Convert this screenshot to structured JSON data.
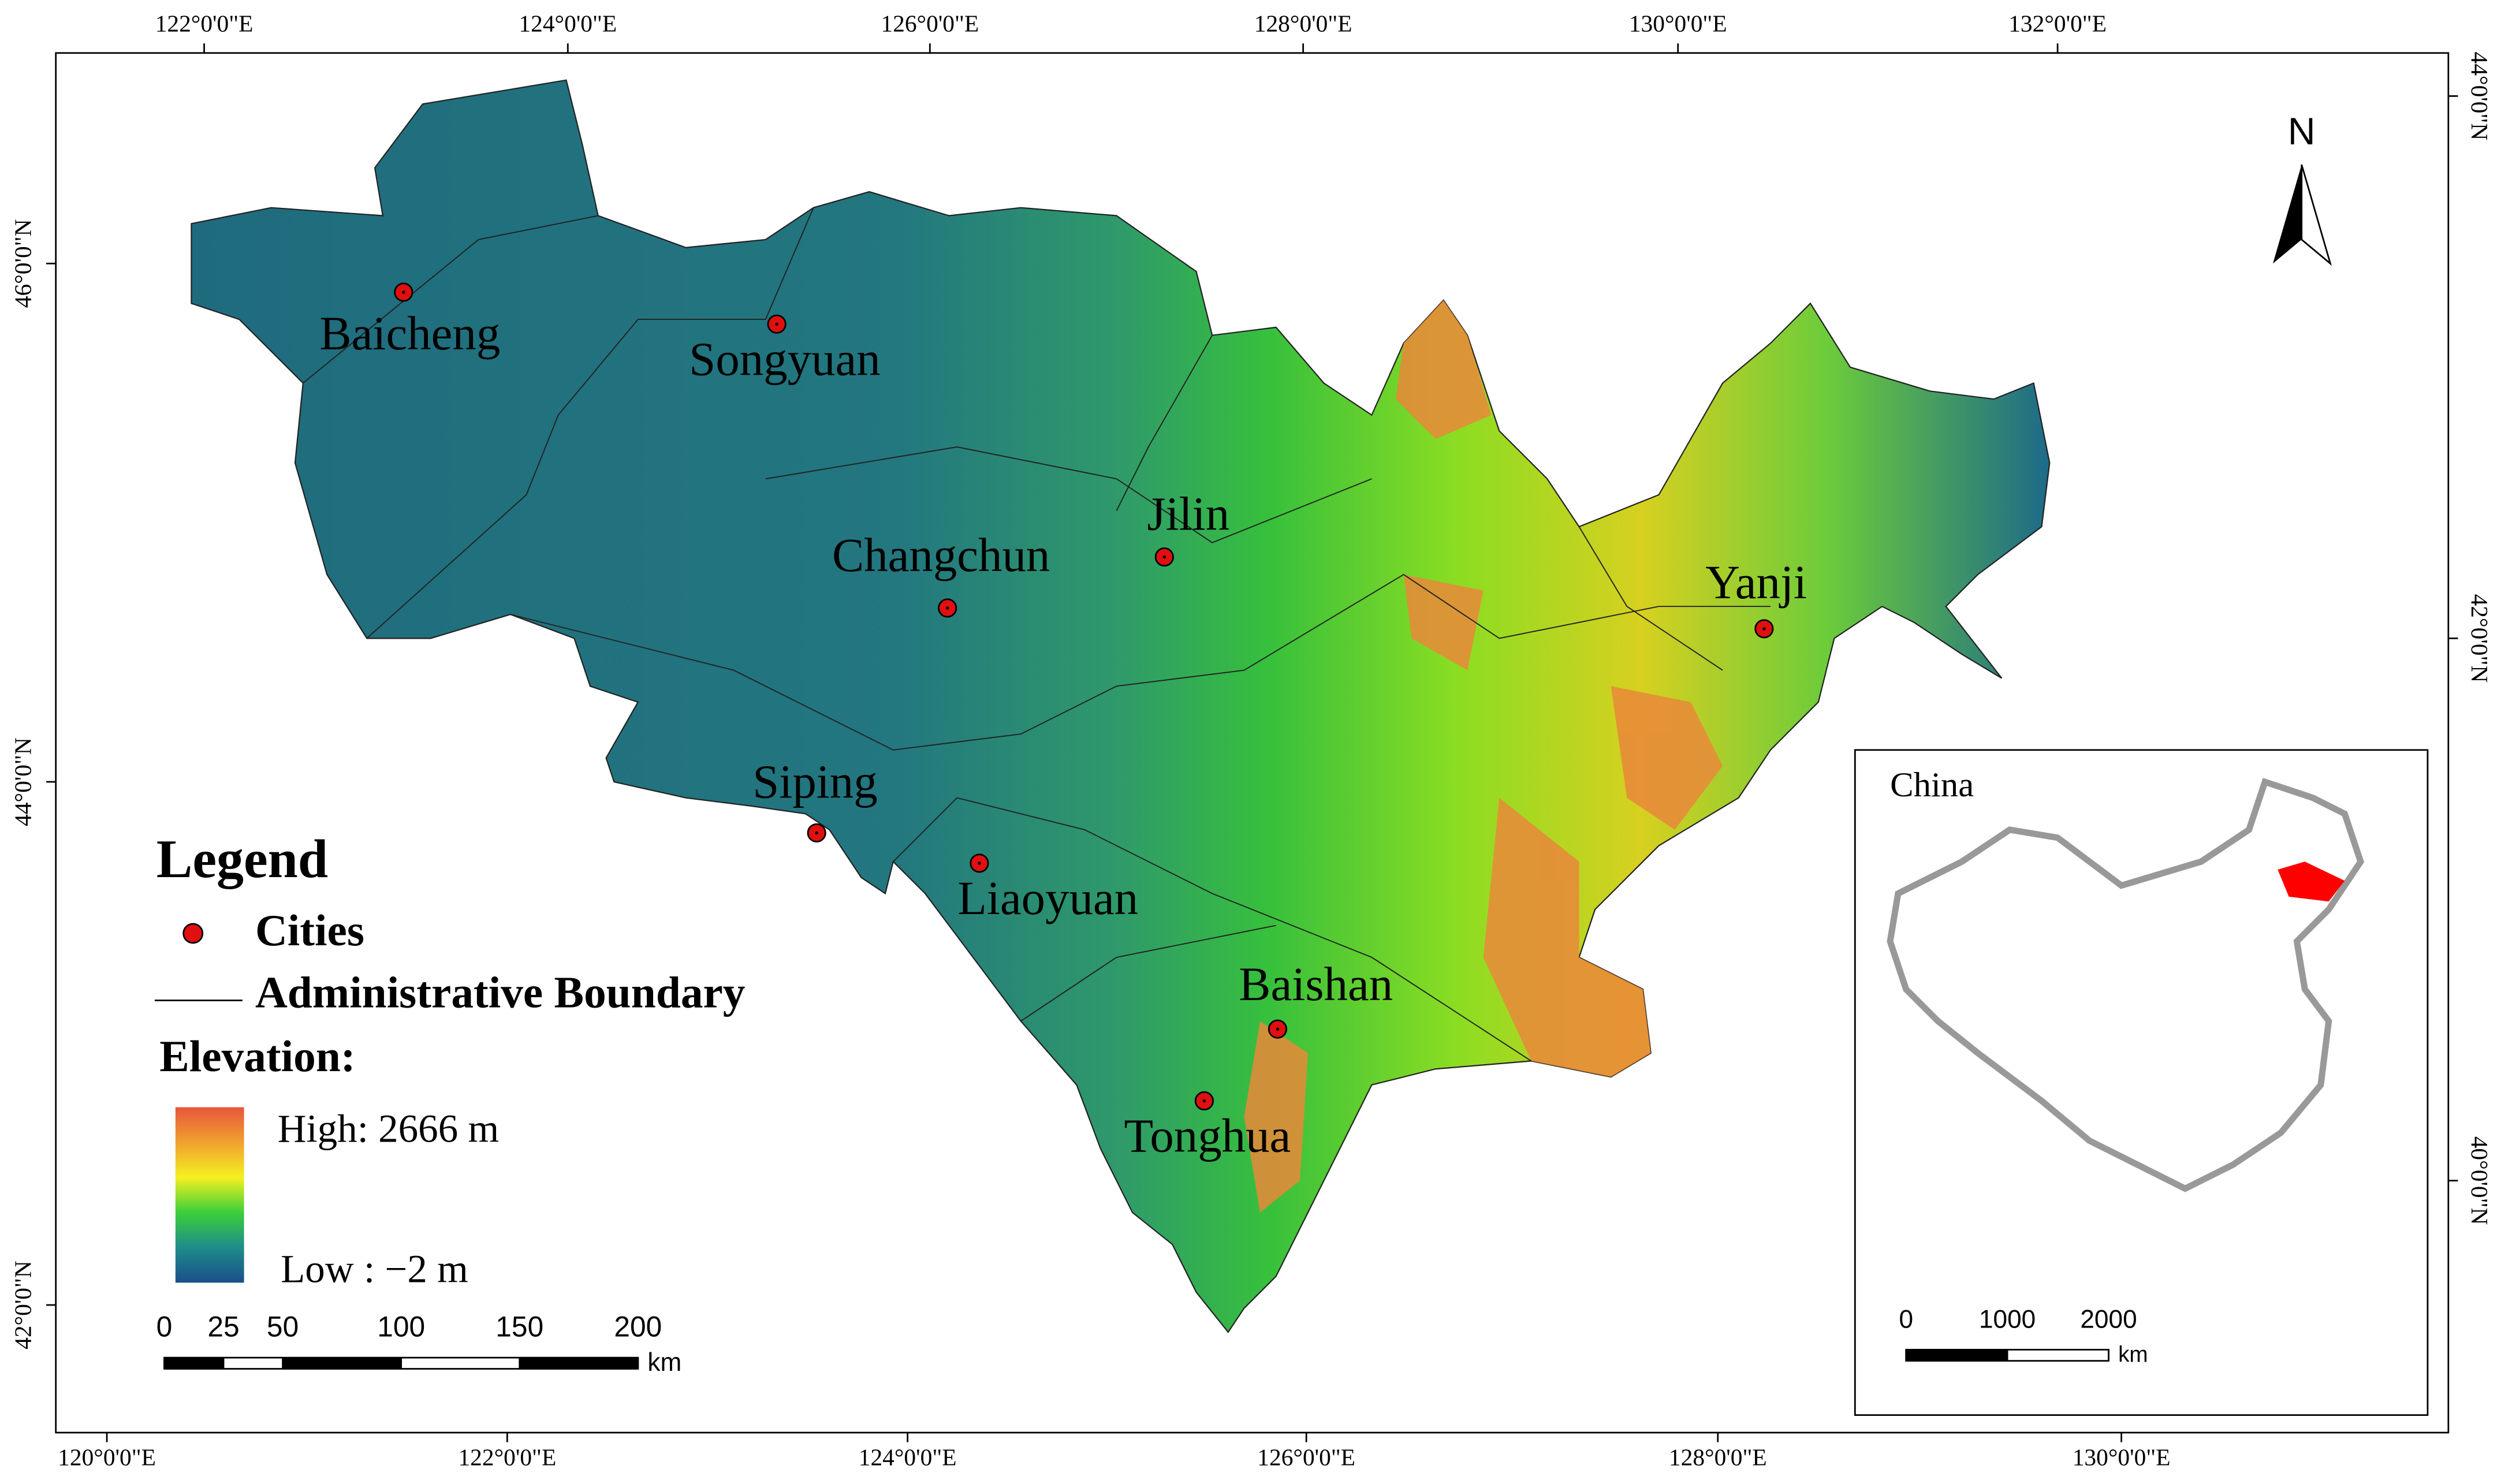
{
  "axes": {
    "top": [
      "122°0'0\"E",
      "124°0'0\"E",
      "126°0'0\"E",
      "128°0'0\"E",
      "130°0'0\"E",
      "132°0'0\"E"
    ],
    "bottom": [
      "120°0'0\"E",
      "122°0'0\"E",
      "124°0'0\"E",
      "126°0'0\"E",
      "128°0'0\"E",
      "130°0'0\"E"
    ],
    "left": [
      "46°0'0\"N",
      "44°0'0\"N",
      "42°0'0\"N"
    ],
    "right": [
      "44°0'0\"N",
      "42°0'0\"N",
      "40°0'0\"N"
    ]
  },
  "north": "N",
  "cities": [
    "Baicheng",
    "Songyuan",
    "Changchun",
    "Jilin",
    "Yanji",
    "Siping",
    "Liaoyuan",
    "Baishan",
    "Tonghua"
  ],
  "legend": {
    "title": "Legend",
    "cities": "Cities",
    "boundary": "Administrative Boundary",
    "elevation": "Elevation:",
    "high": "High: 2666 m",
    "low": "Low : −2 m"
  },
  "scale": {
    "ticks": [
      0,
      25,
      50,
      100,
      150,
      200
    ],
    "unit": "km"
  },
  "inset": {
    "title": "China",
    "scale": {
      "ticks": [
        0,
        1000,
        2000
      ],
      "unit": "km"
    }
  }
}
